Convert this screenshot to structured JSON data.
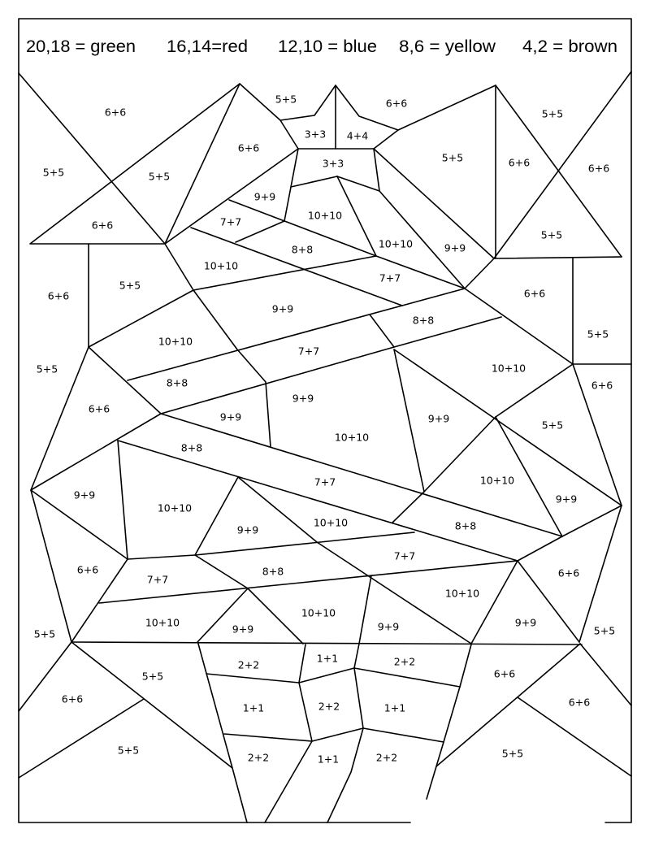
{
  "legend": [
    {
      "text": "20,18 = green",
      "color": "#2e8b2e"
    },
    {
      "text": "16,14=red",
      "color": "#d22"
    },
    {
      "text": "12,10 = blue",
      "color": "#2255cc"
    },
    {
      "text": "8,6 = yellow",
      "color": "#f2d21b"
    },
    {
      "text": "4,2 = brown",
      "color": "#7a4a1e"
    }
  ],
  "regions": [
    "6+6",
    "5+5",
    "6+6",
    "5+5",
    "3+3",
    "4+4",
    "3+3",
    "5+5",
    "5+5",
    "6+6",
    "5+5",
    "6+6",
    "6+6",
    "9+9",
    "10+10",
    "7+7",
    "6+6",
    "8+8",
    "10+10",
    "9+9",
    "5+5",
    "10+10",
    "7+7",
    "5+5",
    "6+6",
    "6+6",
    "9+9",
    "8+8",
    "10+10",
    "7+7",
    "5+5",
    "5+5",
    "10+10",
    "8+8",
    "6+6",
    "9+9",
    "6+6",
    "9+9",
    "9+9",
    "10+10",
    "5+5",
    "8+8",
    "7+7",
    "10+10",
    "9+9",
    "10+10",
    "9+9",
    "10+10",
    "9+9",
    "8+8",
    "6+6",
    "7+7",
    "7+7",
    "8+8",
    "6+6",
    "10+10",
    "10+10",
    "10+10",
    "9+9",
    "9+9",
    "9+9",
    "5+5",
    "5+5",
    "2+2",
    "1+1",
    "2+2",
    "5+5",
    "6+6",
    "6+6",
    "6+6",
    "1+1",
    "2+2",
    "1+1",
    "5+5",
    "5+5",
    "2+2",
    "1+1",
    "2+2"
  ]
}
